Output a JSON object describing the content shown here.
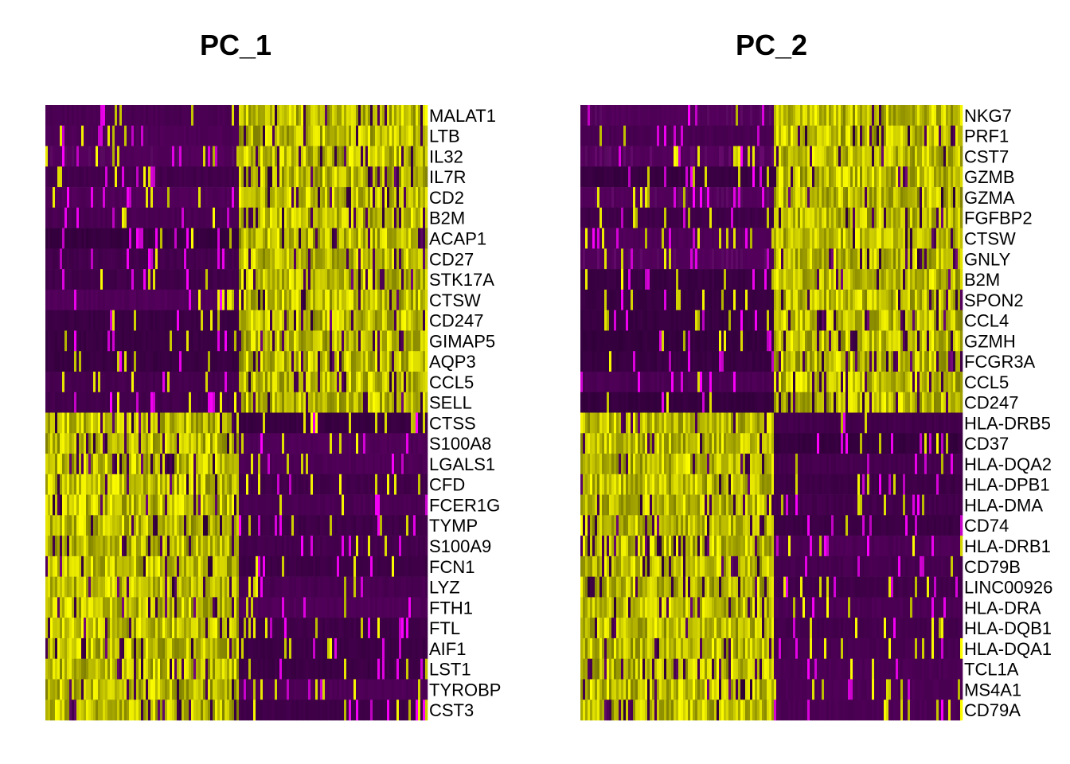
{
  "chart_data": [
    {
      "type": "heatmap",
      "title": "PC_1",
      "colormap": [
        "#440154",
        "#8b008b",
        "#ff00ff",
        "#ffff00"
      ],
      "group_direction": [
        "high-in-right-group",
        "high-in-left-group"
      ],
      "genes": [
        "MALAT1",
        "LTB",
        "IL32",
        "IL7R",
        "CD2",
        "B2M",
        "ACAP1",
        "CD27",
        "STK17A",
        "CTSW",
        "CD247",
        "GIMAP5",
        "AQP3",
        "CCL5",
        "SELL",
        "CTSS",
        "S100A8",
        "LGALS1",
        "CFD",
        "FCER1G",
        "TYMP",
        "S100A9",
        "FCN1",
        "LYZ",
        "FTH1",
        "FTL",
        "AIF1",
        "LST1",
        "TYROBP",
        "CST3"
      ],
      "split_after_row": 15,
      "left_group_high_rows_start": 15
    },
    {
      "type": "heatmap",
      "title": "PC_2",
      "colormap": [
        "#440154",
        "#8b008b",
        "#ff00ff",
        "#ffff00"
      ],
      "genes": [
        "NKG7",
        "PRF1",
        "CST7",
        "GZMB",
        "GZMA",
        "FGFBP2",
        "CTSW",
        "GNLY",
        "B2M",
        "SPON2",
        "CCL4",
        "GZMH",
        "FCGR3A",
        "CCL5",
        "CD247",
        "HLA-DRB5",
        "CD37",
        "HLA-DQA2",
        "HLA-DPB1",
        "HLA-DMA",
        "CD74",
        "HLA-DRB1",
        "CD79B",
        "LINC00926",
        "HLA-DRA",
        "HLA-DQB1",
        "HLA-DQA1",
        "TCL1A",
        "MS4A1",
        "CD79A"
      ],
      "split_after_row": 15,
      "left_group_high_rows_start": 15
    }
  ]
}
